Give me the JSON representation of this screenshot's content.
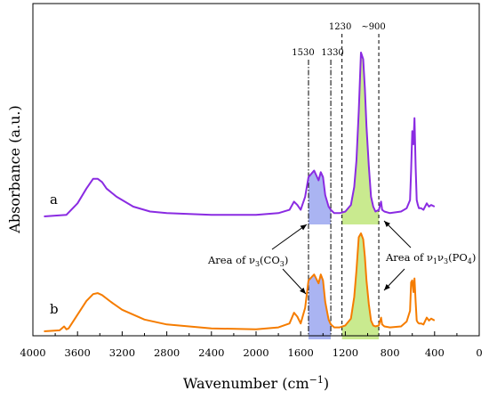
{
  "chart_data": {
    "type": "line",
    "xlabel": "Wavenumber (cm",
    "xlabel_sup": "−1",
    "xlabel_end": ")",
    "ylabel": "Absorbance (a.u.)",
    "xlim": [
      4000,
      0
    ],
    "x_ticks": [
      "4000",
      "3600",
      "3200",
      "2800",
      "2400",
      "2000",
      "1600",
      "1200",
      "800",
      "400",
      "0"
    ],
    "reversed_x": true,
    "grid": false,
    "series": [
      {
        "name": "a",
        "color": "#8a2be2",
        "x": [
          3900,
          3700,
          3600,
          3520,
          3460,
          3420,
          3380,
          3340,
          3250,
          3100,
          2950,
          2800,
          2400,
          2000,
          1800,
          1700,
          1660,
          1630,
          1600,
          1560,
          1530,
          1480,
          1440,
          1420,
          1400,
          1380,
          1350,
          1330,
          1300,
          1250,
          1200,
          1150,
          1120,
          1100,
          1080,
          1060,
          1040,
          1025,
          1010,
          990,
          970,
          950,
          930,
          900,
          880,
          870,
          850,
          800,
          700,
          650,
          620,
          610,
          600,
          590,
          580,
          570,
          560,
          550,
          540,
          520,
          500,
          470,
          450,
          430,
          400
        ],
        "y": [
          0.0,
          0.01,
          0.08,
          0.17,
          0.23,
          0.23,
          0.21,
          0.17,
          0.12,
          0.06,
          0.03,
          0.02,
          0.01,
          0.01,
          0.02,
          0.04,
          0.09,
          0.07,
          0.04,
          0.12,
          0.24,
          0.28,
          0.22,
          0.27,
          0.24,
          0.13,
          0.06,
          0.04,
          0.02,
          0.02,
          0.03,
          0.07,
          0.18,
          0.34,
          0.64,
          1.0,
          0.96,
          0.78,
          0.55,
          0.31,
          0.12,
          0.06,
          0.03,
          0.04,
          0.09,
          0.04,
          0.03,
          0.02,
          0.03,
          0.05,
          0.1,
          0.28,
          0.52,
          0.44,
          0.6,
          0.3,
          0.1,
          0.07,
          0.05,
          0.05,
          0.04,
          0.08,
          0.06,
          0.07,
          0.06
        ]
      },
      {
        "name": "b",
        "color": "#f57c00",
        "x": [
          3900,
          3760,
          3720,
          3700,
          3680,
          3600,
          3520,
          3460,
          3420,
          3380,
          3300,
          3200,
          3000,
          2800,
          2400,
          2000,
          1800,
          1700,
          1660,
          1630,
          1600,
          1560,
          1530,
          1480,
          1440,
          1420,
          1400,
          1380,
          1350,
          1330,
          1300,
          1250,
          1200,
          1150,
          1120,
          1100,
          1080,
          1060,
          1040,
          1025,
          1010,
          990,
          970,
          950,
          930,
          900,
          880,
          870,
          850,
          800,
          700,
          650,
          620,
          610,
          600,
          590,
          580,
          570,
          560,
          550,
          540,
          520,
          500,
          470,
          450,
          430,
          400
        ],
        "y": [
          0.0,
          0.01,
          0.05,
          0.02,
          0.03,
          0.17,
          0.31,
          0.38,
          0.39,
          0.37,
          0.3,
          0.22,
          0.12,
          0.07,
          0.03,
          0.02,
          0.04,
          0.08,
          0.19,
          0.15,
          0.08,
          0.24,
          0.52,
          0.58,
          0.49,
          0.58,
          0.52,
          0.3,
          0.12,
          0.07,
          0.04,
          0.04,
          0.06,
          0.13,
          0.35,
          0.62,
          0.96,
          1.0,
          0.94,
          0.76,
          0.52,
          0.28,
          0.11,
          0.06,
          0.05,
          0.06,
          0.14,
          0.07,
          0.05,
          0.04,
          0.05,
          0.1,
          0.21,
          0.5,
          0.52,
          0.4,
          0.54,
          0.3,
          0.11,
          0.09,
          0.08,
          0.08,
          0.07,
          0.14,
          0.11,
          0.13,
          0.11
        ]
      }
    ],
    "filled_regions": [
      {
        "series": 0,
        "from": 1530,
        "to": 1330,
        "color": "#aab4f2"
      },
      {
        "series": 0,
        "from": 1230,
        "to": 900,
        "color": "#c9ea8f"
      },
      {
        "series": 1,
        "from": 1530,
        "to": 1330,
        "color": "#aab4f2"
      },
      {
        "series": 1,
        "from": 1230,
        "to": 900,
        "color": "#c9ea8f"
      }
    ],
    "reference_lines": [
      {
        "x": 1530,
        "label": "1530",
        "style": "dash-dot"
      },
      {
        "x": 1330,
        "label": "1330",
        "style": "dash-dot"
      },
      {
        "x": 1230,
        "label": "1230",
        "style": "dashed"
      },
      {
        "x": 900,
        "label": "~900",
        "style": "dashed"
      }
    ],
    "annotations": {
      "carbonate": {
        "prefix": "Area of ν",
        "sub1": "3",
        "mid": "(CO",
        "sub2": "3",
        "end": ")"
      },
      "phosphate": {
        "prefix": "Area of ν",
        "sub1": "1",
        "mid1": "ν",
        "sub2": "3",
        "mid2": "(PO",
        "sub3": "4",
        "end": ")"
      }
    },
    "series_labels": [
      "a",
      "b"
    ]
  }
}
